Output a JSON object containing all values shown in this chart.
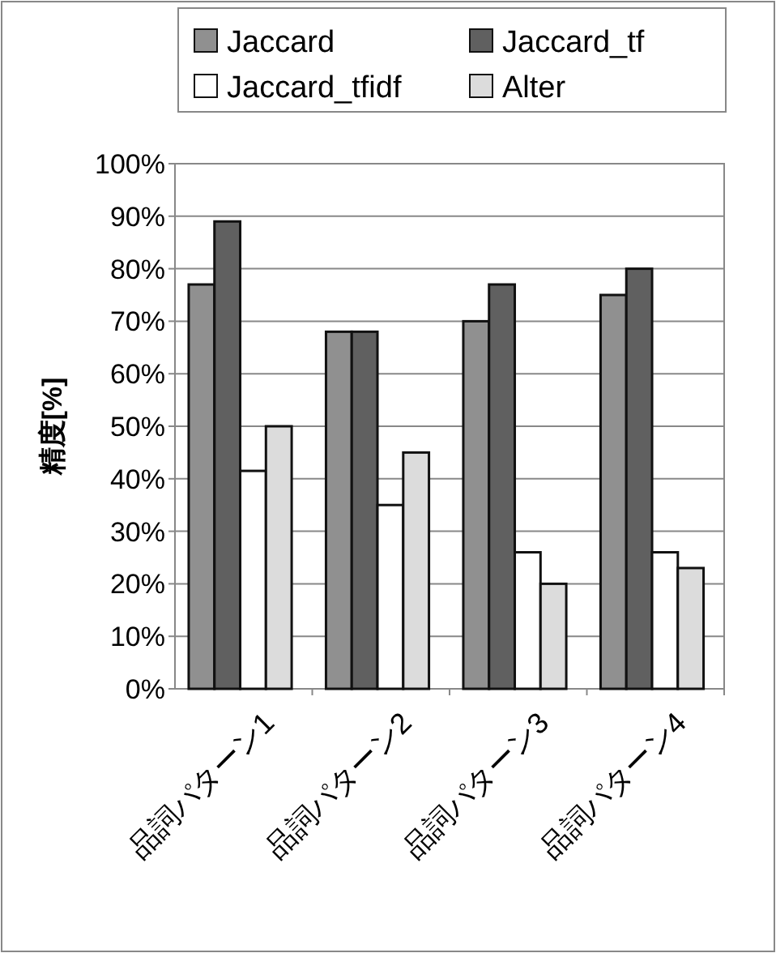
{
  "chart_data": {
    "type": "bar",
    "ylabel": "精度[%]",
    "categories": [
      "品詞パターン1",
      "品詞パターン2",
      "品詞パターン3",
      "品詞パターン4"
    ],
    "series": [
      {
        "name": "Jaccard",
        "color": "#909090",
        "values": [
          77,
          68,
          70,
          75
        ]
      },
      {
        "name": "Jaccard_tf",
        "color": "#606060",
        "values": [
          89,
          68,
          77,
          80
        ]
      },
      {
        "name": "Jaccard_tfidf",
        "color": "#ffffff",
        "values": [
          41.5,
          35,
          26,
          26
        ]
      },
      {
        "name": "Alter",
        "color": "#dcdcdc",
        "values": [
          50,
          45,
          20,
          23
        ]
      }
    ],
    "ylim": [
      0,
      100
    ],
    "yticks": [
      {
        "value": 0,
        "label": "0%"
      },
      {
        "value": 10,
        "label": "10%"
      },
      {
        "value": 20,
        "label": "20%"
      },
      {
        "value": 30,
        "label": "30%"
      },
      {
        "value": 40,
        "label": "40%"
      },
      {
        "value": 50,
        "label": "50%"
      },
      {
        "value": 60,
        "label": "60%"
      },
      {
        "value": 70,
        "label": "70%"
      },
      {
        "value": 80,
        "label": "80%"
      },
      {
        "value": 90,
        "label": "90%"
      },
      {
        "value": 100,
        "label": "100%"
      }
    ],
    "grid": "y",
    "legend": "top"
  }
}
